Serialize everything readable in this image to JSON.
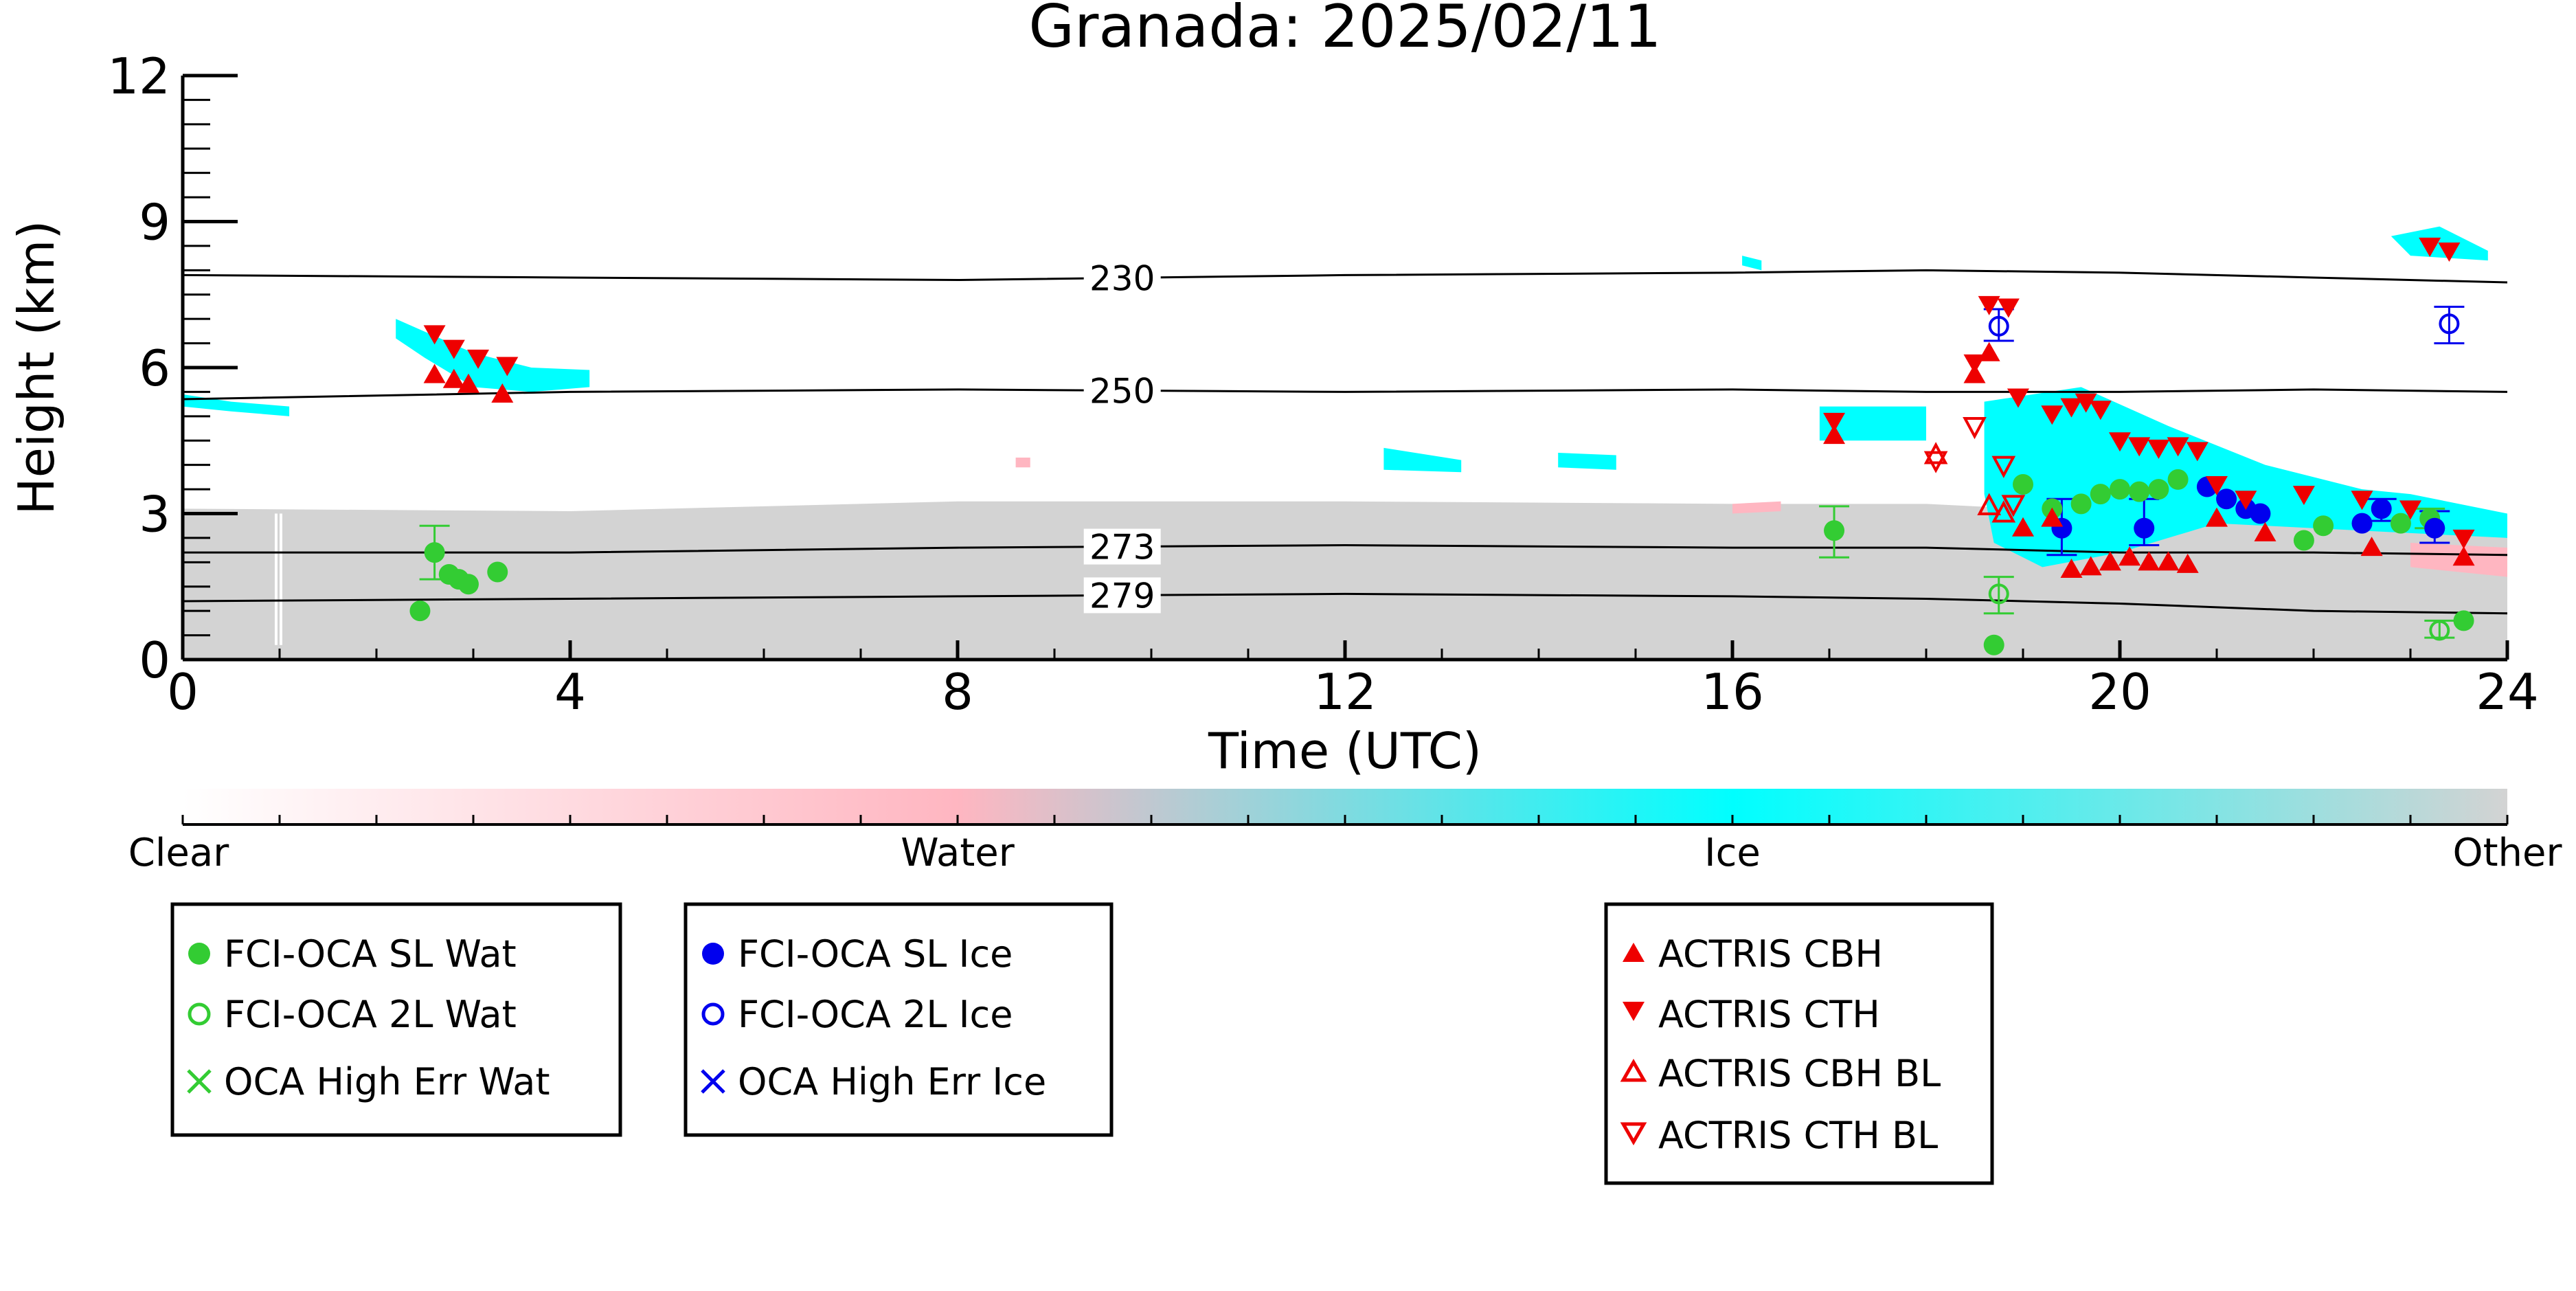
{
  "chart_data": {
    "type": "scatter",
    "title": "Granada: 2025/02/11",
    "xlabel": "Time (UTC)",
    "ylabel": "Height (km)",
    "xlim": [
      0,
      24
    ],
    "ylim": [
      0,
      12
    ],
    "x_ticks": [
      "0",
      "4",
      "8",
      "12",
      "16",
      "20",
      "24"
    ],
    "y_ticks": [
      "0",
      "3",
      "6",
      "9",
      "12"
    ],
    "grid": false,
    "colors": {
      "water_marker": "#33cc33",
      "ice_marker": "#0000ee",
      "actris_marker": "#ee0000",
      "cloud_ice": "#00ffff",
      "cloud_water": "#ffb6c1",
      "cloud_other": "#d3d3d3"
    },
    "colorbar": {
      "labels": [
        "Clear",
        "Water",
        "Ice",
        "Other"
      ],
      "stops": [
        "#ffffff",
        "#ffb6c1",
        "#00ffff",
        "#d3d3d3"
      ]
    },
    "isotherms": [
      {
        "label": "230",
        "points": [
          [
            0,
            7.9
          ],
          [
            4,
            7.85
          ],
          [
            8,
            7.8
          ],
          [
            12,
            7.9
          ],
          [
            16,
            7.95
          ],
          [
            18,
            8.0
          ],
          [
            20,
            7.95
          ],
          [
            22,
            7.85
          ],
          [
            24,
            7.75
          ]
        ]
      },
      {
        "label": "250",
        "points": [
          [
            0,
            5.35
          ],
          [
            4,
            5.5
          ],
          [
            8,
            5.55
          ],
          [
            12,
            5.5
          ],
          [
            16,
            5.55
          ],
          [
            18,
            5.5
          ],
          [
            20,
            5.5
          ],
          [
            22,
            5.55
          ],
          [
            24,
            5.5
          ]
        ]
      },
      {
        "label": "273",
        "points": [
          [
            0,
            2.2
          ],
          [
            4,
            2.2
          ],
          [
            8,
            2.3
          ],
          [
            12,
            2.35
          ],
          [
            16,
            2.3
          ],
          [
            18,
            2.3
          ],
          [
            20,
            2.2
          ],
          [
            22,
            2.2
          ],
          [
            24,
            2.15
          ]
        ]
      },
      {
        "label": "279",
        "points": [
          [
            0,
            1.2
          ],
          [
            4,
            1.25
          ],
          [
            8,
            1.3
          ],
          [
            12,
            1.35
          ],
          [
            16,
            1.3
          ],
          [
            18,
            1.25
          ],
          [
            20,
            1.15
          ],
          [
            22,
            1.0
          ],
          [
            24,
            0.95
          ]
        ]
      }
    ],
    "legend_groups": [
      [
        "FCI-OCA SL Wat",
        "FCI-OCA 2L Wat",
        "OCA High Err Wat"
      ],
      [
        "FCI-OCA SL Ice",
        "FCI-OCA 2L Ice",
        "OCA High Err Ice"
      ],
      [
        "ACTRIS CBH",
        "ACTRIS CTH",
        "ACTRIS CBH BL",
        "ACTRIS CTH BL"
      ]
    ],
    "series": [
      {
        "name": "FCI-OCA SL Wat",
        "points": [
          [
            2.45,
            1.0
          ],
          [
            2.6,
            2.2
          ],
          [
            2.75,
            1.75
          ],
          [
            2.85,
            1.65
          ],
          [
            2.95,
            1.55
          ],
          [
            3.25,
            1.8
          ],
          [
            17.05,
            2.65
          ],
          [
            18.7,
            0.3
          ],
          [
            19.0,
            3.6
          ],
          [
            19.3,
            3.1
          ],
          [
            19.6,
            3.2
          ],
          [
            19.8,
            3.4
          ],
          [
            20.0,
            3.5
          ],
          [
            20.2,
            3.45
          ],
          [
            20.4,
            3.5
          ],
          [
            20.6,
            3.7
          ],
          [
            21.9,
            2.45
          ],
          [
            22.1,
            2.75
          ],
          [
            22.9,
            2.8
          ],
          [
            23.2,
            2.9
          ],
          [
            23.55,
            0.8
          ]
        ]
      },
      {
        "name": "FCI-OCA 2L Wat",
        "points": [
          [
            18.75,
            1.35
          ],
          [
            23.3,
            0.6
          ]
        ]
      },
      {
        "name": "FCI-OCA SL Ice",
        "points": [
          [
            19.4,
            2.7
          ],
          [
            20.25,
            2.7
          ],
          [
            20.9,
            3.55
          ],
          [
            21.1,
            3.3
          ],
          [
            21.3,
            3.1
          ],
          [
            21.45,
            3.0
          ],
          [
            22.5,
            2.8
          ],
          [
            22.7,
            3.1
          ],
          [
            23.25,
            2.7
          ]
        ]
      },
      {
        "name": "FCI-OCA 2L Ice",
        "points": [
          [
            18.75,
            6.85
          ],
          [
            23.4,
            6.9
          ]
        ]
      },
      {
        "name": "ACTRIS CBH",
        "points": [
          [
            2.6,
            5.85
          ],
          [
            2.8,
            5.75
          ],
          [
            2.95,
            5.65
          ],
          [
            3.3,
            5.45
          ],
          [
            17.05,
            4.6
          ],
          [
            18.5,
            5.85
          ],
          [
            18.65,
            6.3
          ],
          [
            19.0,
            2.7
          ],
          [
            19.3,
            2.9
          ],
          [
            19.5,
            1.85
          ],
          [
            19.7,
            1.9
          ],
          [
            19.9,
            2.0
          ],
          [
            20.1,
            2.1
          ],
          [
            20.3,
            2.0
          ],
          [
            20.5,
            2.0
          ],
          [
            20.7,
            1.95
          ],
          [
            21.0,
            2.9
          ],
          [
            21.5,
            2.6
          ],
          [
            22.6,
            2.3
          ],
          [
            23.55,
            2.1
          ]
        ]
      },
      {
        "name": "ACTRIS CTH",
        "points": [
          [
            2.6,
            6.7
          ],
          [
            2.8,
            6.4
          ],
          [
            3.05,
            6.2
          ],
          [
            3.35,
            6.05
          ],
          [
            17.05,
            4.9
          ],
          [
            18.5,
            6.1
          ],
          [
            18.65,
            7.3
          ],
          [
            18.85,
            7.25
          ],
          [
            18.95,
            5.4
          ],
          [
            19.3,
            5.05
          ],
          [
            19.5,
            5.2
          ],
          [
            19.65,
            5.3
          ],
          [
            19.8,
            5.15
          ],
          [
            20.0,
            4.5
          ],
          [
            20.2,
            4.4
          ],
          [
            20.4,
            4.35
          ],
          [
            20.6,
            4.4
          ],
          [
            20.8,
            4.3
          ],
          [
            21.0,
            3.6
          ],
          [
            21.3,
            3.3
          ],
          [
            21.9,
            3.4
          ],
          [
            22.5,
            3.3
          ],
          [
            23.0,
            3.1
          ],
          [
            23.2,
            8.5
          ],
          [
            23.4,
            8.4
          ],
          [
            23.55,
            2.5
          ]
        ]
      },
      {
        "name": "ACTRIS CBH BL",
        "points": [
          [
            18.1,
            4.2
          ],
          [
            18.65,
            3.15
          ],
          [
            18.8,
            3.0
          ]
        ]
      },
      {
        "name": "ACTRIS CTH BL",
        "points": [
          [
            18.1,
            4.1
          ],
          [
            18.5,
            4.8
          ],
          [
            18.8,
            4.0
          ],
          [
            18.9,
            3.2
          ]
        ]
      },
      {
        "name": "OCA High Err Wat",
        "points": []
      },
      {
        "name": "OCA High Err Ice",
        "points": []
      }
    ],
    "error_bars": [
      {
        "series": "FCI-OCA SL Wat",
        "x": 2.6,
        "y": 2.2,
        "low": 1.65,
        "high": 2.75
      },
      {
        "series": "FCI-OCA SL Wat",
        "x": 17.05,
        "y": 2.65,
        "low": 2.1,
        "high": 3.15
      },
      {
        "series": "FCI-OCA 2L Wat",
        "x": 18.75,
        "y": 1.35,
        "low": 0.95,
        "high": 1.7
      },
      {
        "series": "FCI-OCA 2L Wat",
        "x": 23.3,
        "y": 0.6,
        "low": 0.45,
        "high": 0.8
      },
      {
        "series": "FCI-OCA SL Wat",
        "x": 23.2,
        "y": 2.9,
        "low": 2.7,
        "high": 3.1
      },
      {
        "series": "FCI-OCA SL Ice",
        "x": 19.4,
        "y": 2.7,
        "low": 2.15,
        "high": 3.3
      },
      {
        "series": "FCI-OCA SL Ice",
        "x": 20.25,
        "y": 2.7,
        "low": 2.35,
        "high": 3.3
      },
      {
        "series": "FCI-OCA SL Ice",
        "x": 22.7,
        "y": 3.1,
        "low": 2.85,
        "high": 3.3
      },
      {
        "series": "FCI-OCA SL Ice",
        "x": 23.25,
        "y": 2.7,
        "low": 2.4,
        "high": 3.05
      },
      {
        "series": "FCI-OCA 2L Ice",
        "x": 18.75,
        "y": 6.85,
        "low": 6.55,
        "high": 7.2
      },
      {
        "series": "FCI-OCA 2L Ice",
        "x": 23.4,
        "y": 6.9,
        "low": 6.5,
        "high": 7.25
      }
    ],
    "cloud_regions": [
      {
        "phase": "Other",
        "x0": 0.0,
        "x1": 24.0,
        "polygon": [
          [
            0,
            0
          ],
          [
            0,
            3.1
          ],
          [
            4,
            3.05
          ],
          [
            8,
            3.25
          ],
          [
            12,
            3.25
          ],
          [
            16,
            3.2
          ],
          [
            18,
            3.2
          ],
          [
            20,
            3.0
          ],
          [
            22,
            2.9
          ],
          [
            24,
            2.8
          ],
          [
            24,
            0
          ]
        ]
      },
      {
        "phase": "Ice",
        "polygon": [
          [
            0,
            5.45
          ],
          [
            0.5,
            5.3
          ],
          [
            1.1,
            5.2
          ],
          [
            1.1,
            5.0
          ],
          [
            0.5,
            5.1
          ],
          [
            0,
            5.2
          ]
        ]
      },
      {
        "phase": "Ice",
        "polygon": [
          [
            2.2,
            7.0
          ],
          [
            3.0,
            6.3
          ],
          [
            3.6,
            6.0
          ],
          [
            4.2,
            5.95
          ],
          [
            4.2,
            5.6
          ],
          [
            3.6,
            5.5
          ],
          [
            3.0,
            5.6
          ],
          [
            2.5,
            6.2
          ],
          [
            2.2,
            6.6
          ]
        ]
      },
      {
        "phase": "Ice",
        "polygon": [
          [
            12.4,
            4.35
          ],
          [
            13.2,
            4.1
          ],
          [
            13.2,
            3.85
          ],
          [
            12.4,
            3.9
          ]
        ]
      },
      {
        "phase": "Ice",
        "polygon": [
          [
            14.2,
            4.25
          ],
          [
            14.8,
            4.2
          ],
          [
            14.8,
            3.9
          ],
          [
            14.2,
            3.95
          ]
        ]
      },
      {
        "phase": "Ice",
        "polygon": [
          [
            16.1,
            8.3
          ],
          [
            16.3,
            8.2
          ],
          [
            16.3,
            8.0
          ],
          [
            16.1,
            8.1
          ]
        ]
      },
      {
        "phase": "Ice",
        "polygon": [
          [
            16.9,
            5.2
          ],
          [
            18.0,
            5.2
          ],
          [
            18.0,
            4.5
          ],
          [
            16.9,
            4.5
          ]
        ]
      },
      {
        "phase": "Ice",
        "polygon": [
          [
            18.6,
            5.3
          ],
          [
            19.6,
            5.6
          ],
          [
            20.5,
            4.8
          ],
          [
            21.5,
            4.0
          ],
          [
            22.5,
            3.5
          ],
          [
            23.0,
            3.4
          ],
          [
            24.0,
            3.0
          ],
          [
            24.0,
            2.5
          ],
          [
            23.0,
            2.6
          ],
          [
            22.0,
            2.7
          ],
          [
            21.0,
            2.8
          ],
          [
            20.0,
            2.2
          ],
          [
            19.2,
            1.9
          ],
          [
            18.7,
            2.4
          ],
          [
            18.6,
            3.4
          ]
        ]
      },
      {
        "phase": "Ice",
        "polygon": [
          [
            22.8,
            8.7
          ],
          [
            23.3,
            8.9
          ],
          [
            23.8,
            8.4
          ],
          [
            23.8,
            8.2
          ],
          [
            23.0,
            8.3
          ]
        ]
      },
      {
        "phase": "Water",
        "polygon": [
          [
            8.6,
            4.15
          ],
          [
            8.75,
            4.15
          ],
          [
            8.75,
            3.95
          ],
          [
            8.6,
            3.95
          ]
        ]
      },
      {
        "phase": "Water",
        "polygon": [
          [
            16.0,
            3.2
          ],
          [
            16.5,
            3.25
          ],
          [
            16.5,
            3.05
          ],
          [
            16.0,
            3.0
          ]
        ]
      },
      {
        "phase": "Water",
        "polygon": [
          [
            23.0,
            2.4
          ],
          [
            24.0,
            2.3
          ],
          [
            24.0,
            1.7
          ],
          [
            23.0,
            1.9
          ]
        ]
      }
    ]
  }
}
